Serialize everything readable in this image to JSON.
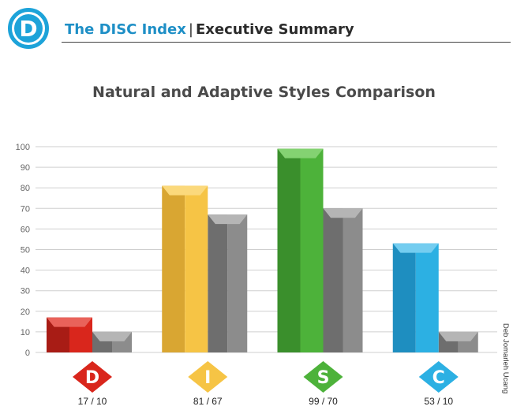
{
  "header": {
    "logo_letter": "D",
    "brand": "The DISC Index",
    "separator": "|",
    "section": "Executive Summary"
  },
  "side_credit": "Deb Jomarleh Ucang",
  "chart_data": {
    "type": "bar",
    "title": "Natural and Adaptive Styles Comparison",
    "xlabel": "",
    "ylabel": "",
    "ylim": [
      0,
      100
    ],
    "yticks": [
      0,
      10,
      20,
      30,
      40,
      50,
      60,
      70,
      80,
      90,
      100
    ],
    "grid": true,
    "categories": [
      "D",
      "I",
      "S",
      "C"
    ],
    "category_labels": [
      "17 / 10",
      "81 / 67",
      "99 / 70",
      "53 / 10"
    ],
    "series": [
      {
        "values": [
          17,
          81,
          99,
          53
        ]
      },
      {
        "values": [
          10,
          67,
          70,
          10
        ]
      }
    ],
    "colors": {
      "category": [
        "#d9261c",
        "#f6c445",
        "#4db23a",
        "#2cb0e3"
      ],
      "category_dark": [
        "#a81c15",
        "#d9a632",
        "#3a8f2c",
        "#1e8ec0"
      ],
      "category_top": [
        "#e9625a",
        "#fbd97c",
        "#84d272",
        "#74cdf0"
      ],
      "secondary": "#8c8c8c",
      "secondary_dark": "#6e6e6e",
      "secondary_top": "#b5b5b5",
      "grid": "#cfcfcf",
      "axis_text": "#666666"
    }
  }
}
